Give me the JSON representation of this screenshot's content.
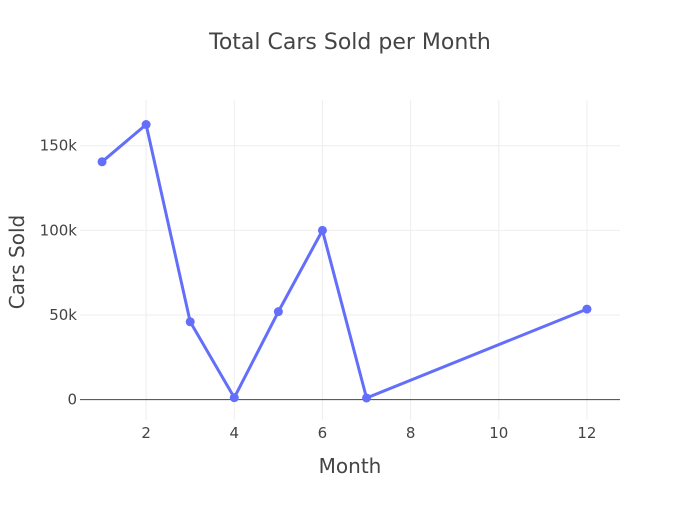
{
  "chart_data": {
    "type": "line",
    "title": "Total Cars Sold per Month",
    "xlabel": "Month",
    "ylabel": "Cars Sold",
    "x": [
      1,
      2,
      3,
      4,
      5,
      6,
      7,
      12
    ],
    "series": [
      {
        "values": [
          140500,
          162500,
          46000,
          1200,
          52000,
          100000,
          1000,
          53500
        ]
      }
    ],
    "xlim": [
      0.5,
      12.75
    ],
    "ylim": [
      -12000,
      177000
    ],
    "xticks": [
      2,
      4,
      6,
      8,
      10,
      12
    ],
    "xtick_labels": [
      "2",
      "4",
      "6",
      "8",
      "10",
      "12"
    ],
    "yticks": [
      0,
      50000,
      100000,
      150000
    ],
    "ytick_labels": [
      "0",
      "50k",
      "100k",
      "150k"
    ],
    "grid": true,
    "legend": "none",
    "colors": {
      "line": "#636efa",
      "text": "#444444",
      "grid": "#eeeeee"
    }
  }
}
